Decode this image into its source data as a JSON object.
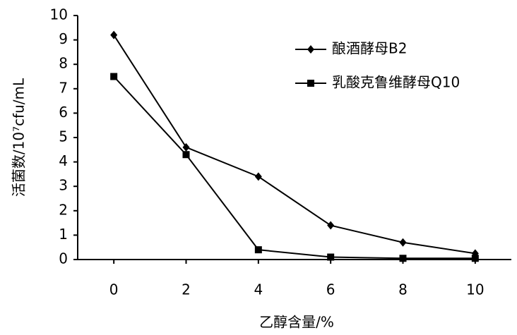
{
  "chart_data": {
    "type": "line",
    "x_label": "乙醇含量/%",
    "y_label": "活菌数/10⁷cfu/mL",
    "x": [
      0,
      2,
      4,
      6,
      8,
      10
    ],
    "series": [
      {
        "name": "酿酒酵母B2",
        "color": "#000000",
        "marker": "diamond",
        "values": [
          9.2,
          4.6,
          3.4,
          1.4,
          0.7,
          0.25
        ]
      },
      {
        "name": "乳酸克鲁维酵母Q10",
        "color": "#000000",
        "marker": "square",
        "values": [
          7.5,
          4.3,
          0.4,
          0.1,
          0.05,
          0.05
        ]
      }
    ],
    "xlim": [
      -1,
      11
    ],
    "xticks": [
      0,
      2,
      4,
      6,
      8,
      10
    ],
    "ylim": [
      0,
      10
    ],
    "yticks": [
      0,
      1,
      2,
      3,
      4,
      5,
      6,
      7,
      8,
      9,
      10
    ],
    "grid": false,
    "legend": "upper right"
  }
}
